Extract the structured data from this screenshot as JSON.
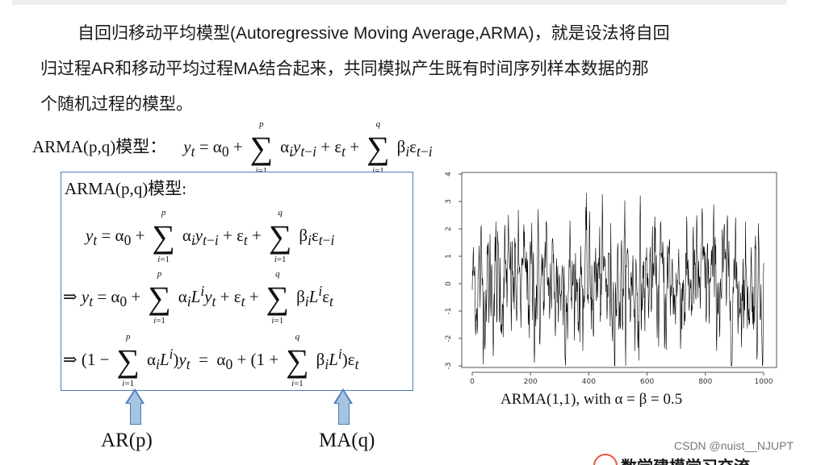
{
  "paragraph": {
    "line1": "自回归移动平均模型(Autoregressive Moving Average,ARMA)，就是设法将自回",
    "line2": "归过程AR和移动平均过程MA结合起来，共同模拟产生既有时间序列样本数据的那",
    "line3": "个随机过程的模型。"
  },
  "formula_main": {
    "label": "ARMA(p,q)模型："
  },
  "box": {
    "title": "ARMA(p,q)模型:"
  },
  "labels": {
    "ar": "AR(p)",
    "ma": "MA(q)"
  },
  "chart_caption": "ARMA(1,1), with α = β = 0.5",
  "watermark": "CSDN @nuist__NJUPT",
  "footer_text": "数学建模学习交流",
  "colors": {
    "box_border": "#4a7bb7",
    "arrow_fill": "#a6c4e0",
    "top_bar": "#eef0ee"
  },
  "chart_data": {
    "type": "line",
    "title": "",
    "xlabel": "",
    "ylabel": "",
    "xlim": [
      0,
      1000
    ],
    "ylim": [
      -3,
      4
    ],
    "x_ticks": [
      "0",
      "200",
      "400",
      "600",
      "800",
      "1000"
    ],
    "y_ticks": [
      "-3",
      "-2",
      "-1",
      "0",
      "1",
      "2",
      "3",
      "4"
    ],
    "series_note": "ARMA(1,1) simulated series, 1000 points",
    "grid": false
  }
}
